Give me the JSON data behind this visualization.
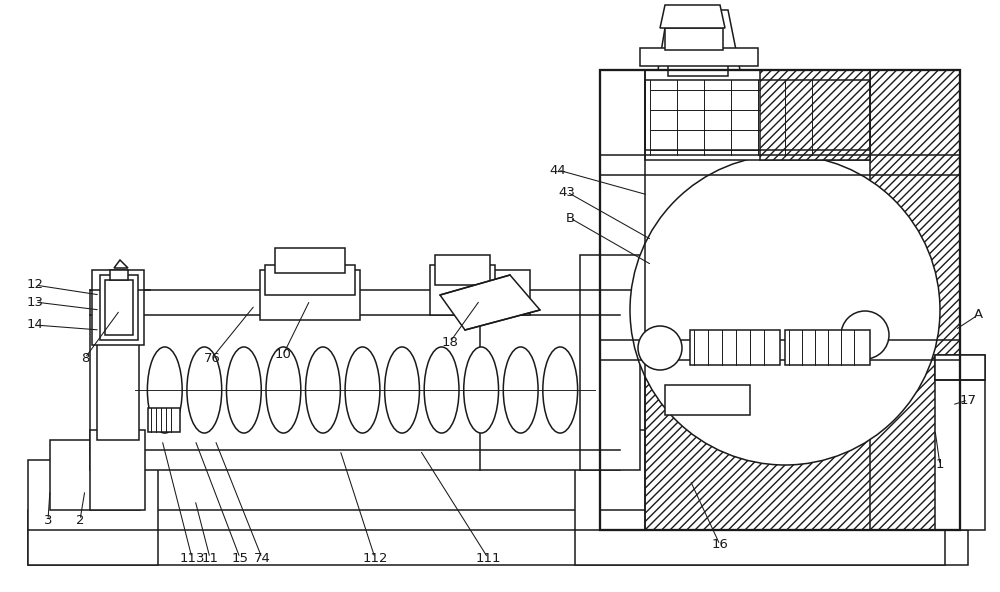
{
  "bg": "#ffffff",
  "lc": "#1a1a1a",
  "lw": 1.1,
  "fig_w": 10.0,
  "fig_h": 5.92
}
